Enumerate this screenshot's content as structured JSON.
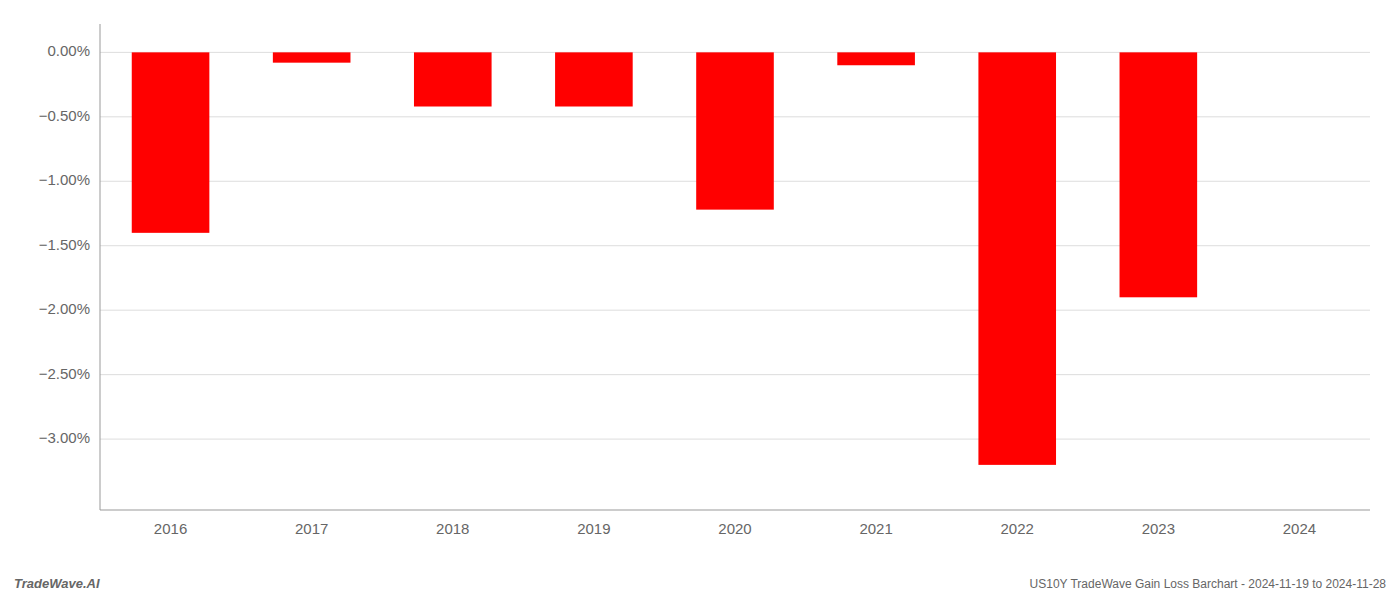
{
  "chart_data": {
    "type": "bar",
    "title": "US10Y TradeWave Gain Loss Barchart - 2024-11-19 to 2024-11-28",
    "annotations": [
      "TradeWave.AI"
    ],
    "categories": [
      "2016",
      "2017",
      "2018",
      "2019",
      "2020",
      "2021",
      "2022",
      "2023",
      "2024"
    ],
    "values": [
      -1.4,
      -0.08,
      -0.42,
      -0.42,
      -1.22,
      -0.1,
      -3.2,
      -1.9,
      null
    ],
    "color": "#ff0000",
    "ylim": [
      -3.55,
      0.22
    ],
    "yticks": [
      {
        "value": 0.0,
        "label": "0.00%"
      },
      {
        "value": -0.5,
        "label": "−0.50%"
      },
      {
        "value": -1.0,
        "label": "−1.00%"
      },
      {
        "value": -1.5,
        "label": "−1.50%"
      },
      {
        "value": -2.0,
        "label": "−2.00%"
      },
      {
        "value": -2.5,
        "label": "−2.50%"
      },
      {
        "value": -3.0,
        "label": "−3.00%"
      }
    ],
    "grid": true
  }
}
